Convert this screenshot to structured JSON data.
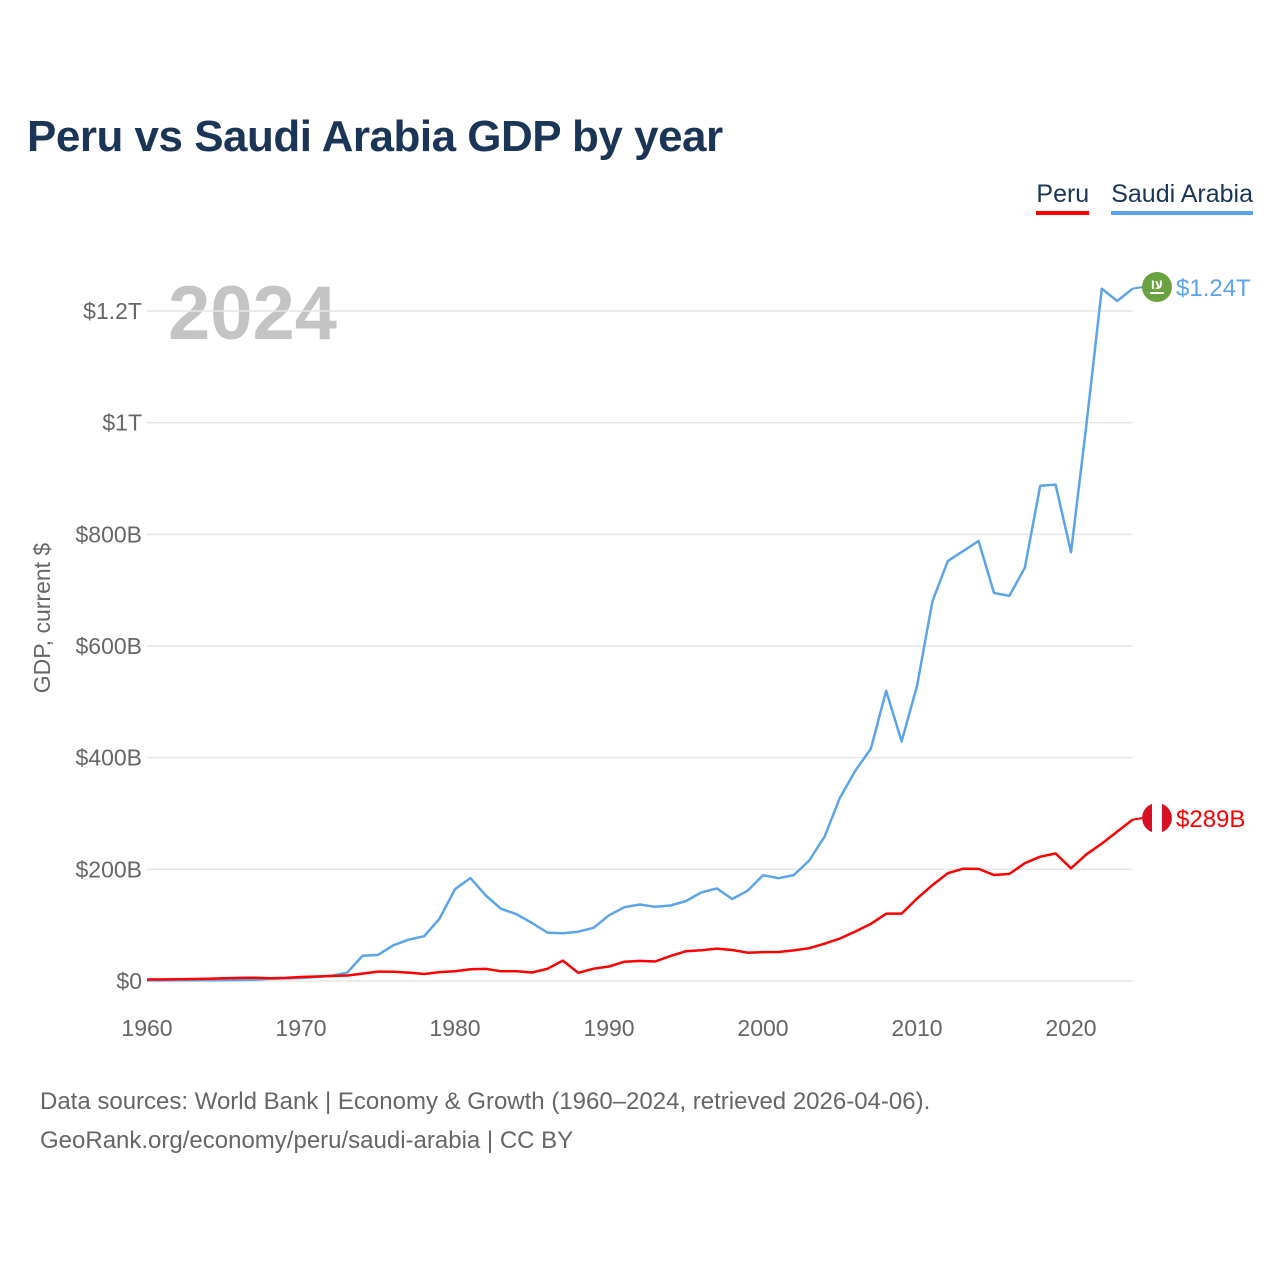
{
  "title": "Peru vs Saudi Arabia GDP by year",
  "legend": [
    {
      "label": "Peru",
      "color": "#ff0000"
    },
    {
      "label": "Saudi Arabia",
      "color": "#5ba4ea"
    }
  ],
  "footer": {
    "line1": "Data sources: World Bank | Economy & Growth (1960–2024, retrieved 2026-04-06).",
    "line2": "GeoRank.org/economy/peru/saudi-arabia | CC BY"
  },
  "chart_data": {
    "type": "line",
    "title": "Peru vs Saudi Arabia GDP by year",
    "xlabel": "",
    "ylabel": "GDP, current $",
    "year_label": "2024",
    "xlim": [
      1960,
      2024
    ],
    "ylim": [
      0,
      1200
    ],
    "y_unit": "billions USD",
    "grid": true,
    "legend_position": "top-right",
    "x_ticks": [
      1960,
      1970,
      1980,
      1990,
      2000,
      2010,
      2020
    ],
    "x_tick_labels": [
      "1960",
      "1970",
      "1980",
      "1990",
      "2000",
      "2010",
      "2020"
    ],
    "y_ticks": [
      0,
      200,
      400,
      600,
      800,
      1000,
      1200
    ],
    "y_tick_labels": [
      "$0",
      "$200B",
      "$400B",
      "$600B",
      "$800B",
      "$1T",
      "$1.2T"
    ],
    "x_start": 1960,
    "series": [
      {
        "name": "Peru",
        "color": "#ff0000",
        "end_label": "$289B",
        "flag": "peru-flag",
        "values": [
          2.6,
          2.9,
          3.3,
          3.6,
          4.1,
          4.8,
          5.5,
          5.7,
          5.1,
          5.6,
          7.1,
          8.0,
          8.9,
          9.9,
          13.2,
          16.9,
          16.4,
          15.0,
          12.6,
          16.0,
          17.6,
          21.2,
          21.6,
          17.3,
          17.6,
          15.3,
          21.8,
          36.5,
          14.7,
          22.0,
          26.0,
          34.5,
          36.0,
          35.0,
          44.9,
          53.4,
          55.2,
          58.1,
          55.6,
          50.6,
          51.7,
          52.0,
          54.8,
          58.7,
          66.8,
          76.1,
          88.6,
          102.2,
          120.6,
          120.8,
          147.5,
          171.8,
          193.0,
          201.2,
          200.8,
          189.8,
          191.9,
          211.0,
          222.6,
          228.3,
          201.9,
          226.9,
          246.0,
          267.6,
          289.0
        ]
      },
      {
        "name": "Saudi Arabia",
        "color": "#5ba4ea",
        "end_label": "$1.24T",
        "flag": "saudi-arabia-flag",
        "values": [
          1.0,
          1.1,
          1.2,
          1.3,
          1.4,
          1.6,
          1.8,
          2.0,
          4.2,
          4.6,
          5.4,
          7.2,
          9.7,
          14.9,
          45.4,
          46.8,
          64.0,
          74.2,
          80.3,
          111.9,
          164.5,
          184.3,
          153.2,
          129.2,
          119.6,
          103.9,
          86.7,
          85.7,
          88.3,
          95.3,
          117.6,
          132.2,
          137.1,
          132.9,
          135.2,
          143.3,
          158.7,
          165.9,
          146.8,
          161.7,
          189.5,
          184.1,
          189.6,
          215.8,
          258.7,
          328.5,
          376.9,
          415.9,
          519.8,
          429.1,
          528.2,
          680.0,
          752.0,
          770.0,
          788.0,
          695.0,
          690.0,
          740.0,
          887.0,
          889.0,
          768.0,
          996.0,
          1240.0,
          1218.0,
          1240.0
        ]
      }
    ]
  }
}
